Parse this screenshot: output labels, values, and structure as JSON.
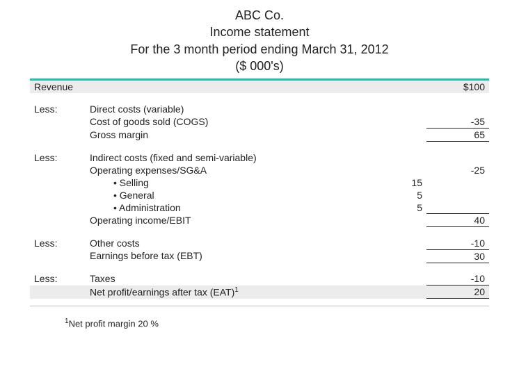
{
  "header": {
    "company": "ABC Co.",
    "title": "Income statement",
    "period": "For the 3 month period ending March 31, 2012",
    "units": "($ 000's)"
  },
  "colors": {
    "accent": "#1bbfb0",
    "highlight_bg": "#ececec",
    "rule_grey": "#bbbbbb",
    "text": "#222222"
  },
  "typography": {
    "body_fontsize": 14,
    "header_fontsize": 18
  },
  "labels": {
    "less": "Less:",
    "revenue": "Revenue",
    "direct_costs": "Direct costs (variable)",
    "cogs": "Cost of goods sold (COGS)",
    "gross_margin": "Gross margin",
    "indirect_costs": "Indirect costs (fixed and semi-variable)",
    "opex": "Operating expenses/SG&A",
    "selling": "• Selling",
    "general": "• General",
    "administration": "• Administration",
    "ebit": "Operating income/EBIT",
    "other_costs": "Other costs",
    "ebt": "Earnings before tax (EBT)",
    "taxes": "Taxes",
    "eat": "Net profit/earnings after tax (EAT)",
    "eat_sup": "1"
  },
  "values": {
    "revenue": "$100",
    "cogs": "-35",
    "gross_margin": "65",
    "opex": "-25",
    "selling": "15",
    "general": "5",
    "administration": "5",
    "ebit": "40",
    "other_costs": "-10",
    "ebt": "30",
    "taxes": "-10",
    "eat": "20"
  },
  "footnote": {
    "sup": "1",
    "text": "Net profit margin 20 %"
  }
}
